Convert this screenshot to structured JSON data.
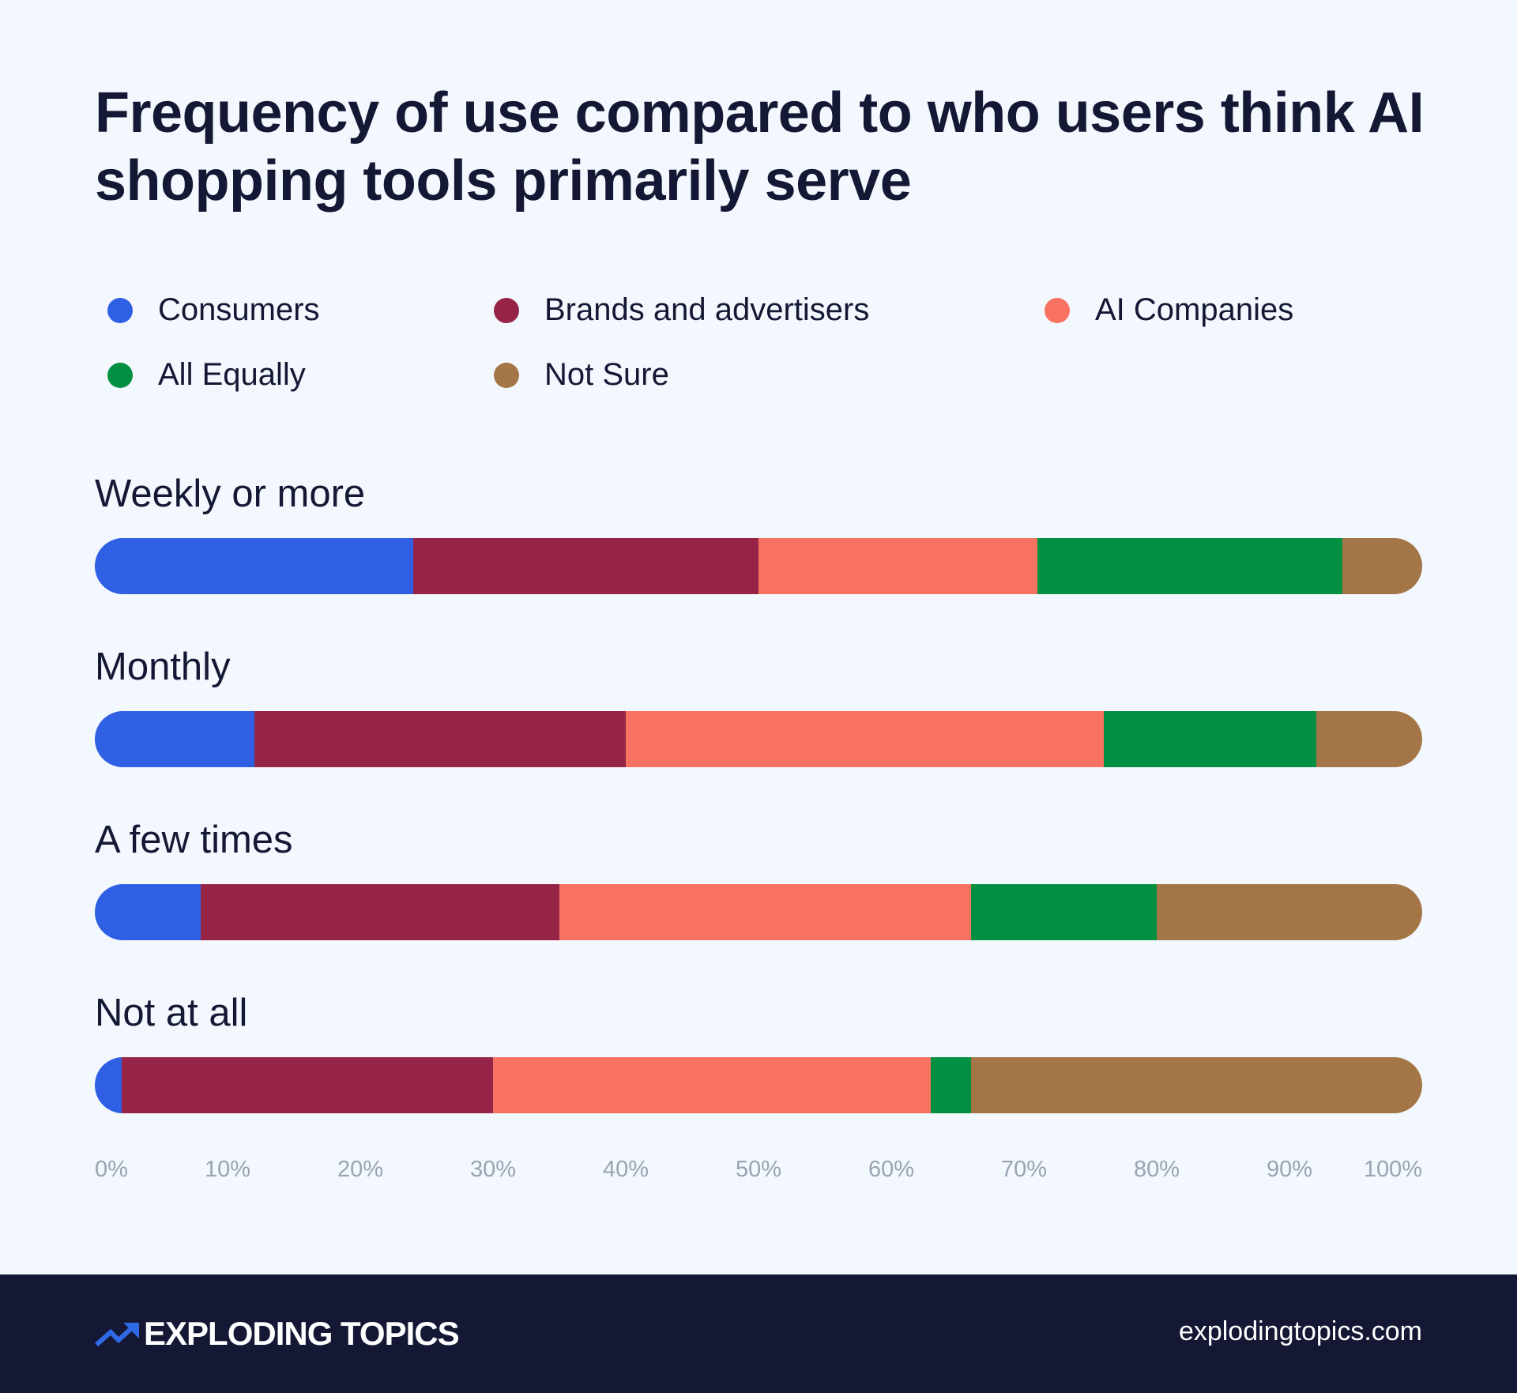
{
  "chart_data": {
    "type": "bar",
    "orientation": "horizontal",
    "stacked": true,
    "normalized": true,
    "title": "Frequency of use compared to who users think AI shopping tools primarily serve",
    "categories": [
      "Weekly or more",
      "Monthly",
      "A few times",
      "Not at all"
    ],
    "series": [
      {
        "name": "Consumers",
        "color": "#2f5fe3",
        "values": [
          24,
          12,
          8,
          2
        ]
      },
      {
        "name": "Brands and advertisers",
        "color": "#962447",
        "values": [
          26,
          28,
          27,
          28
        ]
      },
      {
        "name": "AI Companies",
        "color": "#f87262",
        "values": [
          21,
          36,
          31,
          33
        ]
      },
      {
        "name": "All Equally",
        "color": "#018f41",
        "values": [
          23,
          16,
          14,
          3
        ]
      },
      {
        "name": "Not Sure",
        "color": "#a47647",
        "values": [
          6,
          8,
          20,
          34
        ]
      }
    ],
    "xlim": [
      0,
      100
    ],
    "xticks": [
      "0%",
      "10%",
      "20%",
      "30%",
      "40%",
      "50%",
      "60%",
      "70%",
      "80%",
      "90%",
      "100%"
    ],
    "legend_position": "top",
    "grid": false
  },
  "footer": {
    "brand": "EXPLODING TOPICS",
    "url": "explodingtopics.com",
    "background": "#141834",
    "logo_icon": "trend-arrow-icon"
  }
}
